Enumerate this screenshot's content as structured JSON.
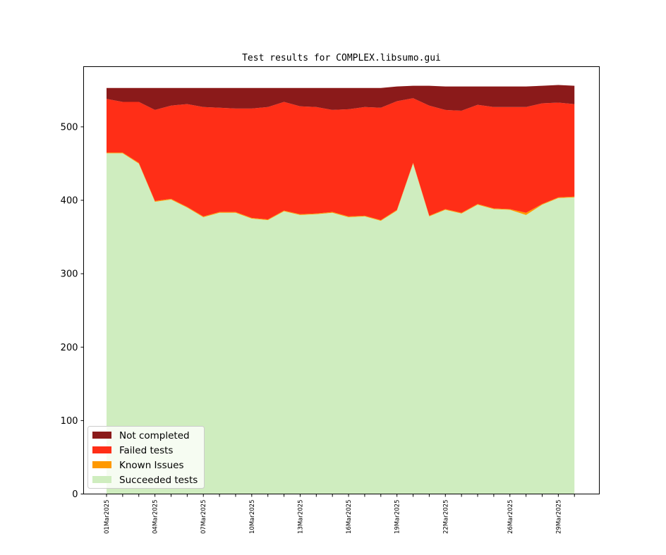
{
  "chart_data": {
    "type": "area",
    "stacked": true,
    "title": "Test results for COMPLEX.libsumo.gui",
    "xlabel": "",
    "ylabel": "",
    "ylim": [
      0,
      582
    ],
    "yticks": [
      0,
      100,
      200,
      300,
      400,
      500
    ],
    "grid": false,
    "legend_position": "lower-left",
    "x": [
      "01Mar2025",
      "02Mar2025",
      "03Mar2025",
      "04Mar2025",
      "05Mar2025",
      "06Mar2025",
      "07Mar2025",
      "08Mar2025",
      "09Mar2025",
      "10Mar2025",
      "11Mar2025",
      "12Mar2025",
      "13Mar2025",
      "14Mar2025",
      "15Mar2025",
      "16Mar2025",
      "17Mar2025",
      "18Mar2025",
      "19Mar2025",
      "20Mar2025",
      "21Mar2025",
      "22Mar2025",
      "23Mar2025",
      "24Mar2025",
      "25Mar2025",
      "26Mar2025",
      "27Mar2025",
      "28Mar2025",
      "29Mar2025",
      "30Mar2025"
    ],
    "xtick_labels": [
      "01Mar2025",
      "04Mar2025",
      "07Mar2025",
      "10Mar2025",
      "13Mar2025",
      "16Mar2025",
      "19Mar2025",
      "22Mar2025",
      "26Mar2025",
      "29Mar2025"
    ],
    "series": [
      {
        "name": "Succeeded tests",
        "color": "#cfedbf",
        "values": [
          464,
          464,
          450,
          398,
          401,
          390,
          377,
          383,
          383,
          375,
          373,
          385,
          380,
          381,
          383,
          377,
          378,
          372,
          386,
          450,
          378,
          387,
          382,
          394,
          388,
          387,
          380,
          394,
          403,
          404
        ]
      },
      {
        "name": "Known Issues",
        "color": "#ff9900",
        "values": [
          1,
          1,
          1,
          1,
          1,
          1,
          1,
          1,
          1,
          1,
          1,
          1,
          1,
          1,
          1,
          1,
          1,
          1,
          1,
          1,
          1,
          1,
          1,
          1,
          1,
          1,
          3,
          1,
          1,
          1
        ]
      },
      {
        "name": "Failed tests",
        "color": "#ff2e17",
        "values": [
          73,
          69,
          83,
          124,
          127,
          140,
          149,
          142,
          141,
          149,
          153,
          148,
          147,
          145,
          139,
          146,
          148,
          153,
          148,
          88,
          150,
          135,
          139,
          135,
          138,
          139,
          144,
          137,
          129,
          126
        ]
      },
      {
        "name": "Not completed",
        "color": "#8b1a1a",
        "values": [
          15,
          19,
          19,
          30,
          24,
          22,
          26,
          27,
          28,
          28,
          26,
          19,
          25,
          26,
          30,
          29,
          26,
          27,
          20,
          17,
          27,
          32,
          33,
          25,
          28,
          28,
          28,
          24,
          24,
          25
        ]
      }
    ],
    "legend_order": [
      "Not completed",
      "Failed tests",
      "Known Issues",
      "Succeeded tests"
    ]
  }
}
